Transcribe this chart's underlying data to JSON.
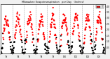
{
  "title": "Evapotranspiration   per Day   (Inches)",
  "title_left": "Milwaukee",
  "ylim": [
    0,
    0.42
  ],
  "yticks": [
    0.05,
    0.1,
    0.15,
    0.2,
    0.25,
    0.3,
    0.35,
    0.4
  ],
  "ytick_labels": [
    ".05",
    ".10",
    ".15",
    ".20",
    ".25",
    ".30",
    ".35",
    ".40"
  ],
  "background_color": "#f0f0f0",
  "plot_bg": "#ffffff",
  "grid_color": "#999999",
  "red_color": "#ff0000",
  "black_color": "#000000",
  "legend_red_label": "ET",
  "n_years": 9,
  "days_per_year": 52,
  "marker_size": 2.5,
  "seed": 12
}
